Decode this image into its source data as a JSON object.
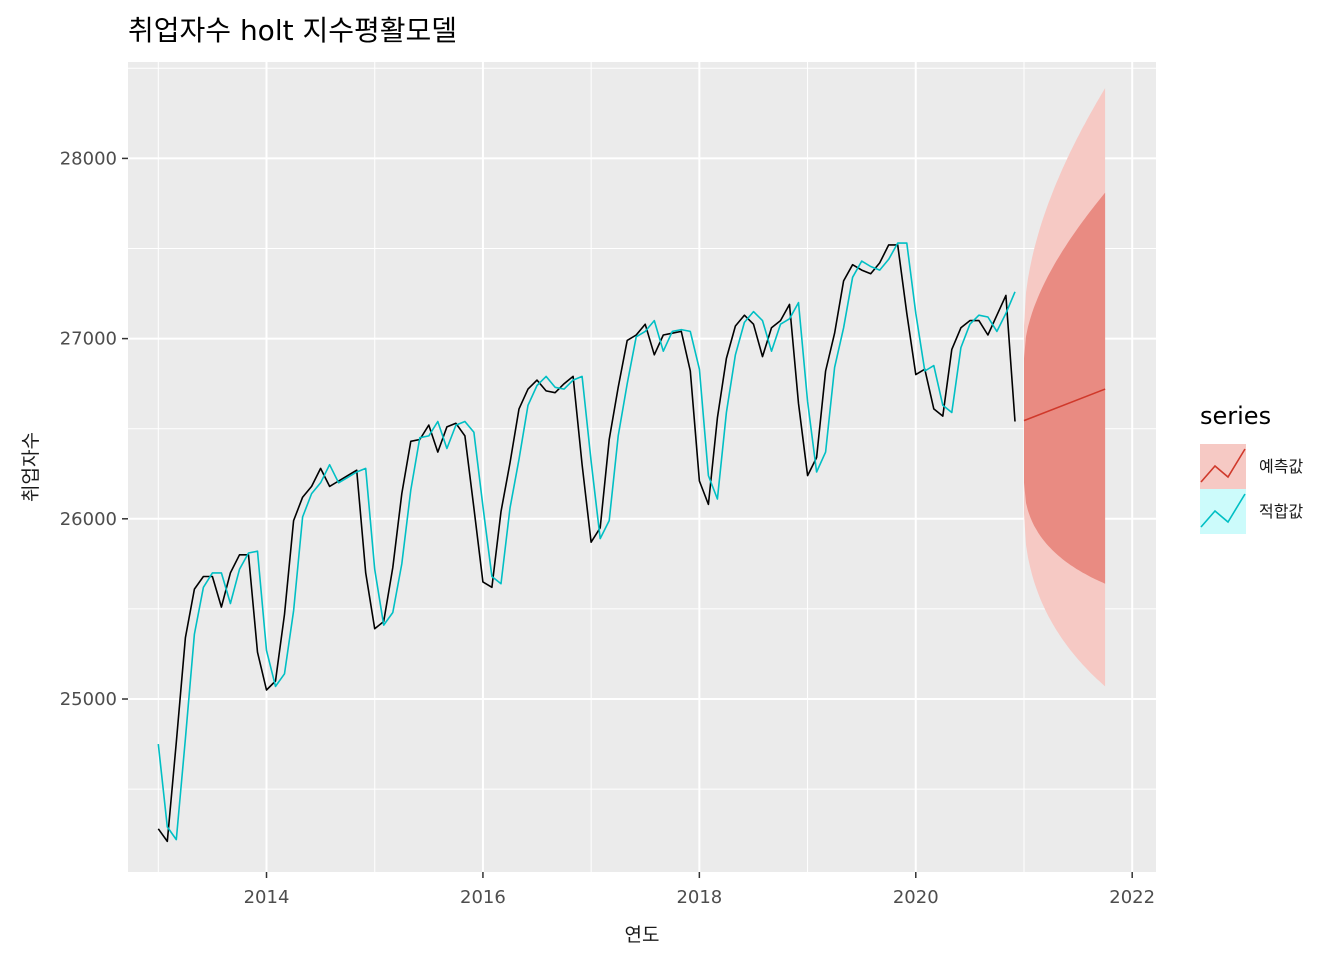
{
  "chart_data": {
    "type": "line",
    "title": "취업자수 holt 지수평활모델",
    "xlabel": "연도",
    "ylabel": "취업자수",
    "xlim": [
      2012.72,
      2022.22
    ],
    "ylim": [
      24040,
      28535
    ],
    "x_ticks": [
      2014,
      2016,
      2018,
      2020,
      2022
    ],
    "x_tick_labels": [
      "2014",
      "2016",
      "2018",
      "2020",
      "2022"
    ],
    "y_ticks": [
      25000,
      26000,
      27000,
      28000
    ],
    "y_tick_labels": [
      "25000",
      "26000",
      "27000",
      "28000"
    ],
    "grid": true,
    "legend": {
      "title": "series",
      "position": "right",
      "entries": [
        {
          "label": "예측값",
          "color": "#d0392b",
          "fill": "#f6c9c4"
        },
        {
          "label": "적합값",
          "color": "#00bfc4",
          "fill": "#ccfbfb"
        }
      ]
    },
    "x_start": 2013.0,
    "step": 0.0833333,
    "actual": {
      "color": "#000000",
      "values": [
        24280,
        24210,
        24760,
        25340,
        25610,
        25680,
        25680,
        25510,
        25700,
        25800,
        25800,
        25260,
        25050,
        25100,
        25470,
        25990,
        26120,
        26180,
        26280,
        26180,
        26210,
        26240,
        26270,
        25700,
        25390,
        25430,
        25730,
        26140,
        26430,
        26440,
        26520,
        26370,
        26510,
        26530,
        26460,
        26060,
        25650,
        25620,
        26040,
        26310,
        26610,
        26720,
        26770,
        26710,
        26700,
        26750,
        26790,
        26300,
        25870,
        25950,
        26440,
        26730,
        26990,
        27020,
        27080,
        26910,
        27020,
        27030,
        27040,
        26820,
        26210,
        26080,
        26560,
        26890,
        27070,
        27130,
        27080,
        26900,
        27060,
        27100,
        27190,
        26640,
        26240,
        26340,
        26820,
        27030,
        27320,
        27410,
        27380,
        27360,
        27420,
        27520,
        27520,
        27140,
        26800,
        26830,
        26610,
        26570,
        26940,
        27060,
        27100,
        27100,
        27020,
        27130,
        27240,
        26540
      ]
    },
    "fitted": {
      "name": "적합값",
      "color": "#00bfc4",
      "values": [
        24750,
        24290,
        24220,
        24780,
        25360,
        25620,
        25700,
        25700,
        25530,
        25720,
        25810,
        25820,
        25270,
        25070,
        25140,
        25490,
        26010,
        26140,
        26200,
        26300,
        26200,
        26230,
        26260,
        26280,
        25720,
        25410,
        25480,
        25750,
        26160,
        26450,
        26460,
        26540,
        26390,
        26520,
        26540,
        26480,
        26070,
        25680,
        25640,
        26060,
        26330,
        26630,
        26740,
        26790,
        26730,
        26720,
        26770,
        26790,
        26320,
        25890,
        25990,
        26460,
        26750,
        27010,
        27040,
        27100,
        26930,
        27040,
        27050,
        27040,
        26830,
        26240,
        26110,
        26590,
        26910,
        27090,
        27150,
        27100,
        26930,
        27080,
        27110,
        27200,
        26650,
        26260,
        26370,
        26840,
        27060,
        27340,
        27430,
        27400,
        27380,
        27440,
        27530,
        27530,
        27140,
        26820,
        26850,
        26630,
        26590,
        26950,
        27080,
        27130,
        27120,
        27040,
        27140,
        27260
      ]
    },
    "forecast": {
      "name": "예측값",
      "color": "#d0392b",
      "x": [
        2021.0,
        2021.75
      ],
      "mean": [
        26545,
        26720
      ],
      "pi80": {
        "lower": [
          26200,
          25640
        ],
        "upper": [
          26890,
          27810
        ],
        "color": "#e98b82"
      },
      "pi95": {
        "lower": [
          26030,
          25070
        ],
        "upper": [
          27070,
          28390
        ],
        "color": "#f6c9c4"
      }
    }
  }
}
